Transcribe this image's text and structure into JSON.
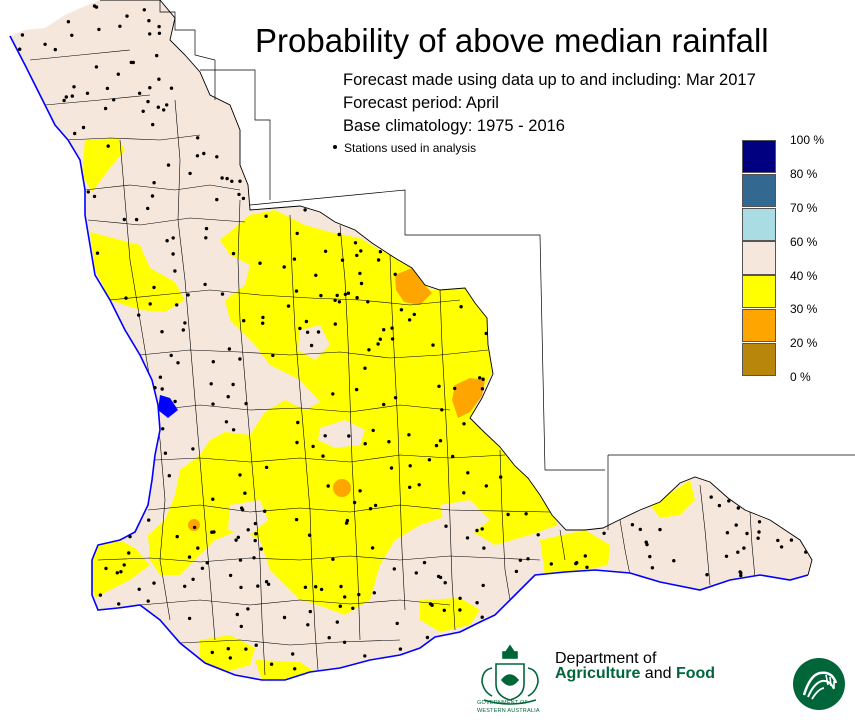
{
  "header": {
    "title": "Probability of above median rainfall",
    "line1": "Forecast made using data up to and including: Mar 2017",
    "line2": "Forecast period: April",
    "line3": "Base climatology: 1975 - 2016",
    "stations_note": "Stations used in analysis"
  },
  "legend": [
    {
      "label": "100 %",
      "color": "#000080"
    },
    {
      "label": "80 %",
      "color": "#336891"
    },
    {
      "label": "70 %",
      "color": "#aadce3"
    },
    {
      "label": "60 %",
      "color": "#f6e7dc"
    },
    {
      "label": "40 %",
      "color": "#ffff00"
    },
    {
      "label": "30 %",
      "color": "#ffa500"
    },
    {
      "label": "20 %",
      "color": "#b8860b"
    },
    {
      "label": "0 %",
      "color": ""
    }
  ],
  "colors": {
    "land_neutral": "#f6e7dc",
    "probability_40_60": "#ffff00",
    "probability_30_40": "#ffa500",
    "coastline": "#0000ff",
    "boundary": "#000000",
    "dept_green": "#00663a"
  },
  "branding": {
    "dept_line1": "Department of",
    "dept_word1": "Agriculture",
    "dept_word2": " and ",
    "dept_word3": "Food",
    "crest_caption1": "GOVERNMENT OF",
    "crest_caption2": "WESTERN AUSTRALIA",
    "crest_icon": "wa-government-crest",
    "emblem_icon": "dafwa-emblem"
  }
}
